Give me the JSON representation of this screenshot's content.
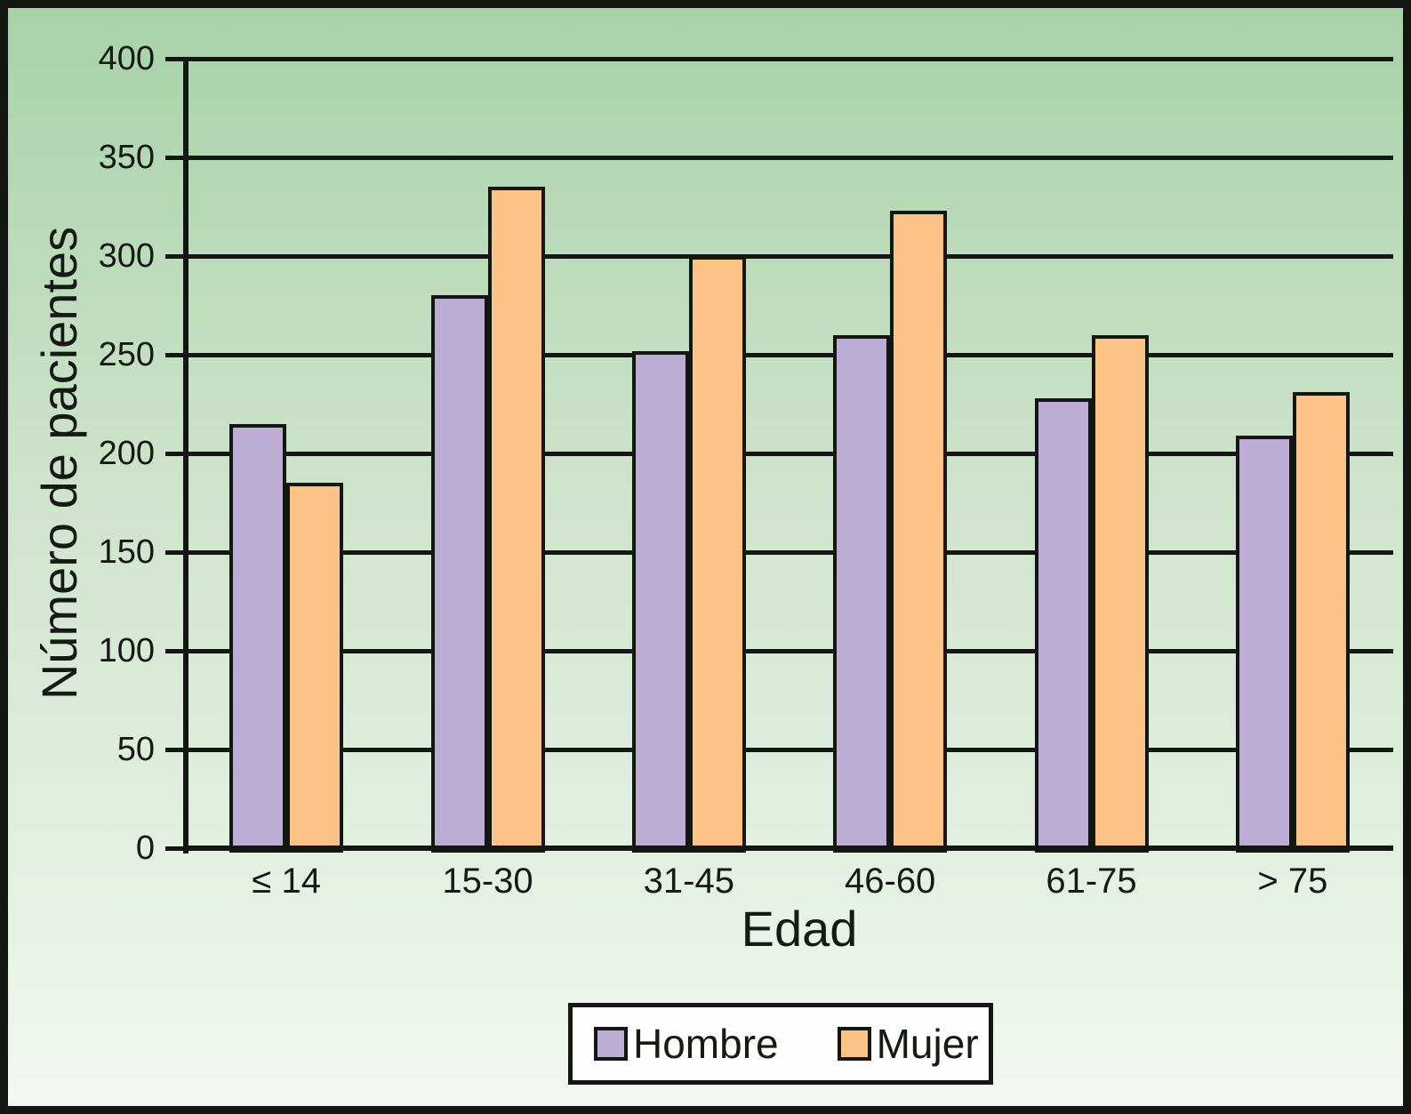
{
  "chart_data": {
    "type": "bar",
    "title": "",
    "categories": [
      "≤ 14",
      "15-30",
      "31-45",
      "46-60",
      "61-75",
      "> 75"
    ],
    "series": [
      {
        "name": "Hombre",
        "color": "#bcadd4",
        "values": [
          215,
          280,
          252,
          260,
          228,
          209
        ]
      },
      {
        "name": "Mujer",
        "color": "#fbc386",
        "values": [
          185,
          335,
          300,
          323,
          260,
          231
        ]
      }
    ],
    "xlabel": "Edad",
    "ylabel": "Número de pacientes",
    "ylim": [
      0,
      400
    ],
    "ytick_step": 50,
    "yticks": [
      0,
      50,
      100,
      150,
      200,
      250,
      300,
      350,
      400
    ],
    "grid": "horizontal",
    "legend_position": "bottom"
  },
  "colors": {
    "line": "#121712",
    "background_top": "#a8d2a8",
    "background_mid": "#cfe4cc",
    "background_bottom": "#f3f8f2",
    "legend_background": "#fdfefd",
    "text": "#151a15"
  }
}
